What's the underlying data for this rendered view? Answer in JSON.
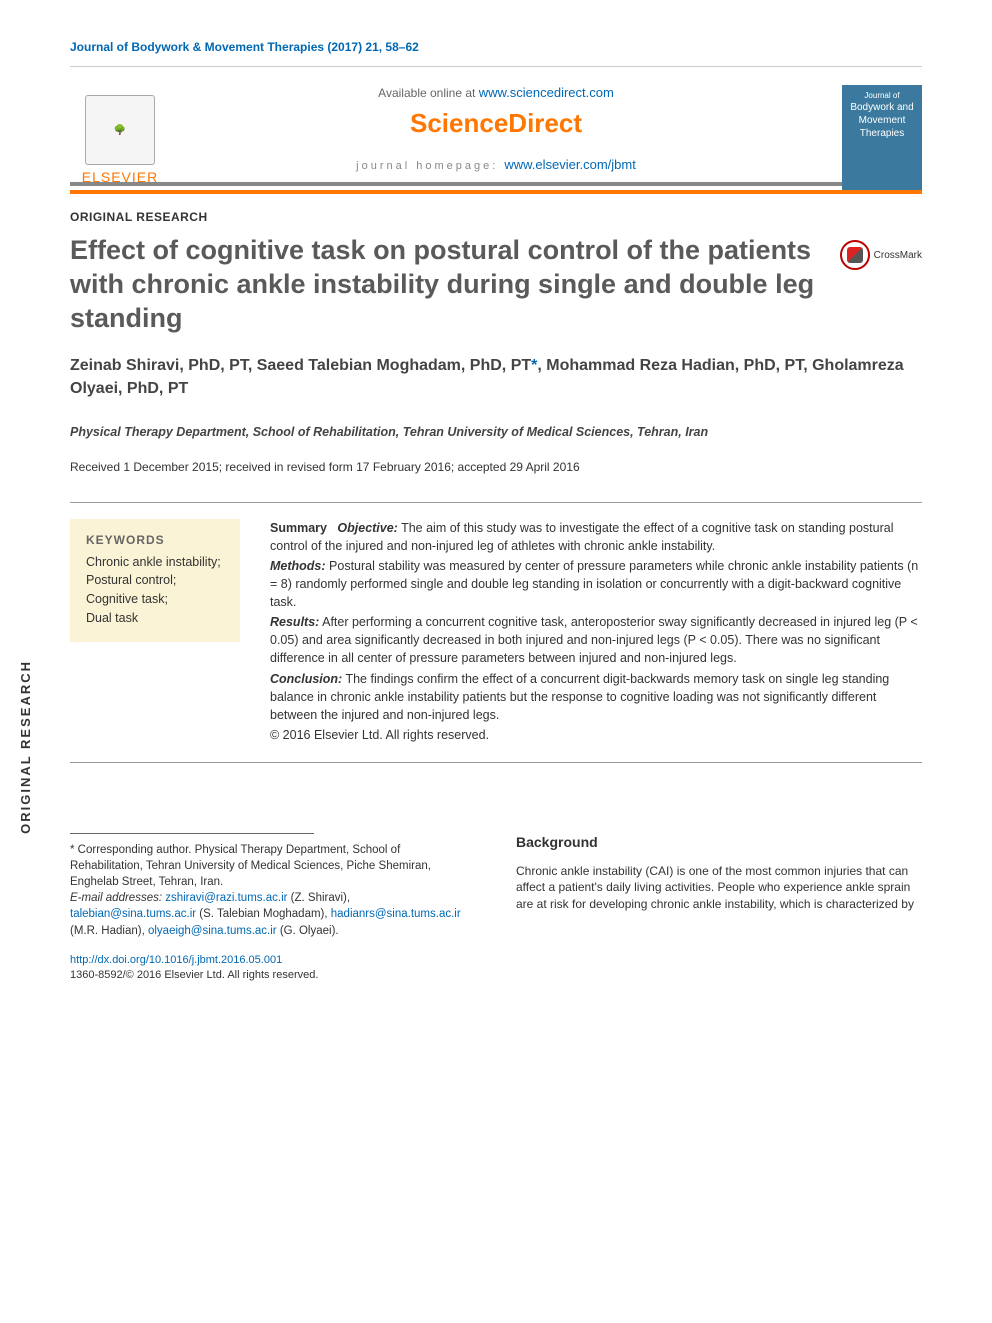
{
  "header": {
    "citation": "Journal of Bodywork & Movement Therapies (2017) 21, 58–62",
    "available_text": "Available online at ",
    "sd_url": "www.sciencedirect.com",
    "sd_logo": "ScienceDirect",
    "homepage_label": "journal homepage: ",
    "homepage_url": "www.elsevier.com/jbmt",
    "elsevier": "ELSEVIER",
    "cover_title": "Bodywork and Movement Therapies"
  },
  "article": {
    "type": "ORIGINAL RESEARCH",
    "title": "Effect of cognitive task on postural control of the patients with chronic ankle instability during single and double leg standing",
    "crossmark": "CrossMark",
    "authors": "Zeinab Shiravi, PhD, PT, Saeed Talebian Moghadam, PhD, PT*, Mohammad Reza Hadian, PhD, PT, Gholamreza Olyaei, PhD, PT",
    "affiliation": "Physical Therapy Department, School of Rehabilitation, Tehran University of Medical Sciences, Tehran, Iran",
    "dates": "Received 1 December 2015; received in revised form 17 February 2016; accepted 29 April 2016"
  },
  "keywords": {
    "heading": "KEYWORDS",
    "list": "Chronic ankle instability;\nPostural control;\nCognitive task;\nDual task"
  },
  "abstract": {
    "summary_label": "Summary",
    "objective_label": "Objective:",
    "objective": " The aim of this study was to investigate the effect of a cognitive task on standing postural control of the injured and non-injured leg of athletes with chronic ankle instability.",
    "methods_label": "Methods:",
    "methods": " Postural stability was measured by center of pressure parameters while chronic ankle instability patients (n = 8) randomly performed single and double leg standing in isolation or concurrently with a digit-backward cognitive task.",
    "results_label": "Results:",
    "results": " After performing a concurrent cognitive task, anteroposterior sway significantly decreased in injured leg (P < 0.05) and area significantly decreased in both injured and non-injured legs (P < 0.05). There was no significant difference in all center of pressure parameters between injured and non-injured legs.",
    "conclusion_label": "Conclusion:",
    "conclusion": " The findings confirm the effect of a concurrent digit-backwards memory task on single leg standing balance in chronic ankle instability patients but the response to cognitive loading was not significantly different between the injured and non-injured legs.",
    "copyright": "© 2016 Elsevier Ltd. All rights reserved."
  },
  "footnotes": {
    "corr": "* Corresponding author. Physical Therapy Department, School of Rehabilitation, Tehran University of Medical Sciences, Piche Shemiran, Enghelab Street, Tehran, Iran.",
    "email_label": "E-mail addresses: ",
    "e1": "zshiravi@razi.tums.ac.ir",
    "n1": " (Z. Shiravi), ",
    "e2": "talebian@sina.tums.ac.ir",
    "n2": " (S. Talebian Moghadam), ",
    "e3": "hadianrs@sina.tums.ac.ir",
    "n3": " (M.R. Hadian), ",
    "e4": "olyaeigh@sina.tums.ac.ir",
    "n4": " (G. Olyaei)."
  },
  "body": {
    "heading": "Background",
    "para": "Chronic ankle instability (CAI) is one of the most common injuries that can affect a patient's daily living activities. People who experience ankle sprain are at risk for developing chronic ankle instability, which is characterized by"
  },
  "doi": {
    "url": "http://dx.doi.org/10.1016/j.jbmt.2016.05.001",
    "issn": "1360-8592/© 2016 Elsevier Ltd. All rights reserved."
  },
  "side_label": "ORIGINAL RESEARCH"
}
